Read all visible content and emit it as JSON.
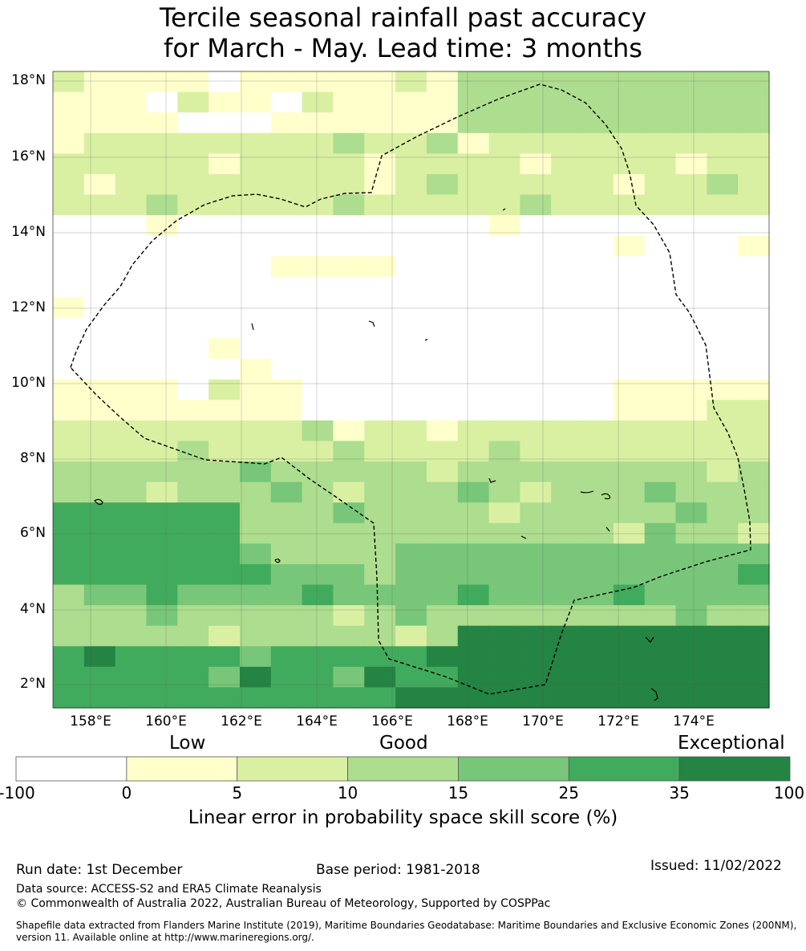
{
  "title_line1": "Tercile seasonal rainfall past accuracy",
  "title_line2": "for March - May. Lead time: 3 months",
  "map": {
    "lat_labels": [
      "18°N",
      "16°N",
      "14°N",
      "12°N",
      "10°N",
      "8°N",
      "6°N",
      "4°N",
      "2°N"
    ],
    "lon_labels": [
      "158°E",
      "160°E",
      "162°E",
      "164°E",
      "166°E",
      "168°E",
      "170°E",
      "172°E",
      "174°E"
    ],
    "bands": [
      {
        "category": 0
      },
      {
        "category": 1
      },
      {
        "category": 2
      },
      {
        "category": 3
      },
      {
        "category": 4
      },
      {
        "category": 5
      },
      {
        "category": 6
      }
    ]
  },
  "colorbar": {
    "words": {
      "low": "Low",
      "good": "Good",
      "exceptional": "Exceptional"
    },
    "ticks": [
      "-100",
      "0",
      "5",
      "10",
      "15",
      "25",
      "35",
      "100"
    ],
    "colors": [
      "#ffffff",
      "#ffffcc",
      "#d9f0a3",
      "#addd8e",
      "#78c679",
      "#41ab5d",
      "#238443"
    ],
    "title": "Linear error in probability space skill score (%)"
  },
  "footer": {
    "run_date": "Run date: 1st December",
    "base_period": "Base period: 1981-2018",
    "issued": "Issued: 11/02/2022",
    "data_source": "Data source: ACCESS-S2 and ERA5 Climate Reanalysis",
    "copyright": "© Commonwealth of Australia 2022, Australian Bureau of Meteorology, Supported by COSPPac",
    "shapefile": "Shapefile data extracted from Flanders Marine Institute (2019), Maritime Boundaries Geodatabase: Maritime Boundaries and Exclusive Economic Zones (200NM), version 11. Available online at http://www.marineregions.org/."
  }
}
